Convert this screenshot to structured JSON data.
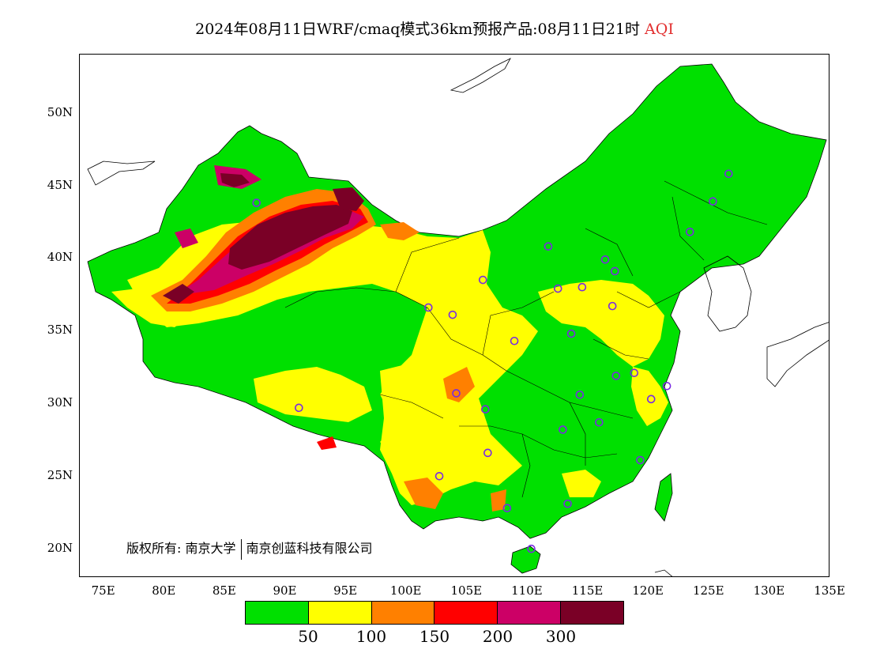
{
  "title": {
    "text": "2024年08月11日WRF/cmaq模式36km预报产品:08月11日21时",
    "variable": "AQI"
  },
  "axes": {
    "lat_labels": [
      "50N",
      "45N",
      "40N",
      "35N",
      "30N",
      "25N",
      "20N"
    ],
    "lon_labels": [
      "75E",
      "80E",
      "85E",
      "90E",
      "95E",
      "100E",
      "105E",
      "110E",
      "115E",
      "120E",
      "125E",
      "130E",
      "135E"
    ],
    "lon_range": [
      73,
      135
    ],
    "lat_range": [
      18,
      54
    ]
  },
  "copyright": {
    "prefix": "版权所有:",
    "org1": "南京大学",
    "org2": "南京创蓝科技有限公司"
  },
  "legend": {
    "colors": [
      "#00e000",
      "#ffff00",
      "#ff8000",
      "#ff0000",
      "#cc0066",
      "#7a0026"
    ],
    "labels": [
      "50",
      "100",
      "150",
      "200",
      "300"
    ]
  },
  "zones": {
    "good": "#00e000",
    "moderate": "#ffff00",
    "sensitive": "#ff8000",
    "unhealthy": "#ff0000",
    "very_unhealthy": "#cc0066",
    "hazardous": "#7a0026"
  },
  "city_marker_color": "#7a2be2"
}
